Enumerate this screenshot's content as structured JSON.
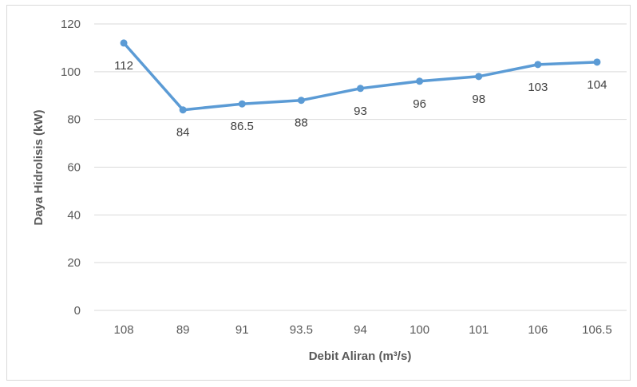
{
  "chart_data": {
    "type": "line",
    "title": "",
    "categories": [
      "108",
      "89",
      "91",
      "93.5",
      "94",
      "100",
      "101",
      "106",
      "106.5"
    ],
    "values": [
      112,
      84,
      86.5,
      88,
      93,
      96,
      98,
      103,
      104
    ],
    "data_labels": [
      "112",
      "84",
      "86.5",
      "88",
      "93",
      "96",
      "98",
      "103",
      "104"
    ],
    "xlabel": "Debit Aliran (m³/s)",
    "ylabel": "Daya Hidrolisis (kW)",
    "ylim": [
      0,
      120
    ],
    "yticks": [
      0,
      20,
      40,
      60,
      80,
      100,
      120
    ],
    "grid": true,
    "legend": "none",
    "line_color": "#5b9bd5",
    "grid_color": "#d9d9d9"
  }
}
